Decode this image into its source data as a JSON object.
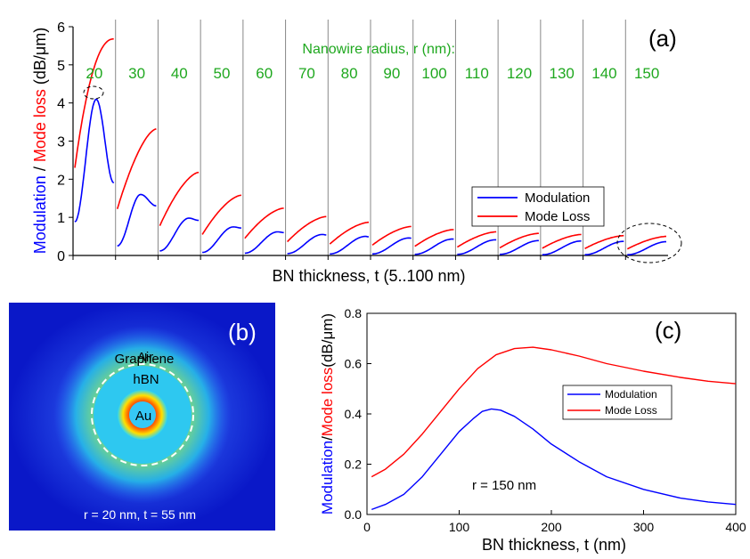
{
  "colors": {
    "modulation": "#0000ff",
    "mode_loss": "#ff0000",
    "radius_label": "#1fa81f",
    "black": "#000000"
  },
  "chart_data": [
    {
      "id": "a",
      "type": "line",
      "panel_label": "(a)",
      "xlabel": "BN thickness, t (5..100 nm)",
      "ylabel_parts": [
        "Modulation",
        " / ",
        "Mode loss",
        " (dB/μm)"
      ],
      "ylim": [
        0,
        6
      ],
      "yticks": [
        0,
        1,
        2,
        3,
        4,
        5,
        6
      ],
      "group_title": "Nanowire radius, r (nm):",
      "groups": [
        "20",
        "30",
        "40",
        "50",
        "60",
        "70",
        "80",
        "90",
        "100",
        "110",
        "120",
        "130",
        "140",
        "150"
      ],
      "legend": [
        "Modulation",
        "Mode Loss"
      ],
      "series": [
        {
          "name": "Modulation",
          "groups": [
            {
              "start": 0.88,
              "peak": 4.1,
              "peak_pos": 0.55,
              "end": 1.9
            },
            {
              "start": 0.25,
              "peak": 1.6,
              "peak_pos": 0.6,
              "end": 1.3
            },
            {
              "start": 0.12,
              "peak": 0.98,
              "peak_pos": 0.75,
              "end": 0.92
            },
            {
              "start": 0.08,
              "peak": 0.75,
              "peak_pos": 0.8,
              "end": 0.72
            },
            {
              "start": 0.06,
              "peak": 0.62,
              "peak_pos": 0.85,
              "end": 0.6
            },
            {
              "start": 0.05,
              "peak": 0.55,
              "peak_pos": 0.9,
              "end": 0.54
            },
            {
              "start": 0.04,
              "peak": 0.5,
              "peak_pos": 0.92,
              "end": 0.49
            },
            {
              "start": 0.04,
              "peak": 0.46,
              "peak_pos": 0.95,
              "end": 0.45
            },
            {
              "start": 0.03,
              "peak": 0.43,
              "peak_pos": 0.97,
              "end": 0.43
            },
            {
              "start": 0.03,
              "peak": 0.41,
              "peak_pos": 0.98,
              "end": 0.41
            },
            {
              "start": 0.03,
              "peak": 0.39,
              "peak_pos": 1.0,
              "end": 0.39
            },
            {
              "start": 0.02,
              "peak": 0.38,
              "peak_pos": 1.0,
              "end": 0.38
            },
            {
              "start": 0.02,
              "peak": 0.37,
              "peak_pos": 1.0,
              "end": 0.37
            },
            {
              "start": 0.02,
              "peak": 0.36,
              "peak_pos": 1.0,
              "end": 0.36
            }
          ]
        },
        {
          "name": "Mode Loss",
          "groups": [
            {
              "start": 2.3,
              "end": 5.68
            },
            {
              "start": 1.22,
              "end": 3.32
            },
            {
              "start": 0.78,
              "end": 2.18
            },
            {
              "start": 0.55,
              "end": 1.58
            },
            {
              "start": 0.45,
              "end": 1.24
            },
            {
              "start": 0.36,
              "end": 1.02
            },
            {
              "start": 0.3,
              "end": 0.87
            },
            {
              "start": 0.27,
              "end": 0.76
            },
            {
              "start": 0.24,
              "end": 0.68
            },
            {
              "start": 0.22,
              "end": 0.62
            },
            {
              "start": 0.2,
              "end": 0.58
            },
            {
              "start": 0.19,
              "end": 0.55
            },
            {
              "start": 0.18,
              "end": 0.52
            },
            {
              "start": 0.17,
              "end": 0.5
            }
          ]
        }
      ],
      "legend_position": "center-right",
      "grid": false
    },
    {
      "id": "c",
      "type": "line",
      "panel_label": "(c)",
      "xlabel": "BN thickness, t (nm)",
      "ylabel_parts": [
        "Modulation",
        "/",
        "Mode loss",
        "(dB/μm)"
      ],
      "xlim": [
        0,
        400
      ],
      "ylim": [
        0,
        0.8
      ],
      "xticks": [
        0,
        100,
        200,
        300,
        400
      ],
      "yticks": [
        "0.0",
        "0.2",
        "0.4",
        "0.6",
        "0.8"
      ],
      "annotation": "r = 150 nm",
      "legend": [
        "Modulation",
        "Mode Loss"
      ],
      "legend_position": "center-right",
      "grid": false,
      "series": [
        {
          "name": "Modulation",
          "x": [
            5,
            20,
            40,
            60,
            80,
            100,
            115,
            125,
            135,
            145,
            160,
            180,
            200,
            230,
            260,
            300,
            340,
            370,
            400
          ],
          "y": [
            0.02,
            0.04,
            0.08,
            0.15,
            0.24,
            0.33,
            0.38,
            0.41,
            0.42,
            0.415,
            0.39,
            0.34,
            0.28,
            0.21,
            0.15,
            0.1,
            0.065,
            0.05,
            0.04
          ]
        },
        {
          "name": "Mode Loss",
          "x": [
            5,
            20,
            40,
            60,
            80,
            100,
            120,
            140,
            160,
            180,
            200,
            230,
            260,
            300,
            340,
            370,
            400
          ],
          "y": [
            0.15,
            0.18,
            0.24,
            0.32,
            0.41,
            0.5,
            0.58,
            0.635,
            0.66,
            0.665,
            0.655,
            0.63,
            0.6,
            0.57,
            0.545,
            0.53,
            0.52
          ]
        }
      ]
    }
  ],
  "panel_b": {
    "panel_label": "(b)",
    "labels": [
      "Air",
      "Graphene",
      "hBN",
      "Au"
    ],
    "caption": "r = 20 nm, t = 55 nm"
  }
}
